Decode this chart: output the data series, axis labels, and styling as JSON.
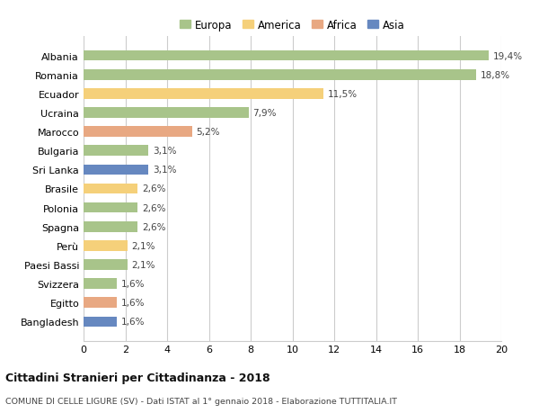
{
  "countries": [
    "Albania",
    "Romania",
    "Ecuador",
    "Ucraina",
    "Marocco",
    "Bulgaria",
    "Sri Lanka",
    "Brasile",
    "Polonia",
    "Spagna",
    "Perù",
    "Paesi Bassi",
    "Svizzera",
    "Egitto",
    "Bangladesh"
  ],
  "values": [
    19.4,
    18.8,
    11.5,
    7.9,
    5.2,
    3.1,
    3.1,
    2.6,
    2.6,
    2.6,
    2.1,
    2.1,
    1.6,
    1.6,
    1.6
  ],
  "labels": [
    "19,4%",
    "18,8%",
    "11,5%",
    "7,9%",
    "5,2%",
    "3,1%",
    "3,1%",
    "2,6%",
    "2,6%",
    "2,6%",
    "2,1%",
    "2,1%",
    "1,6%",
    "1,6%",
    "1,6%"
  ],
  "continents": [
    "Europa",
    "Europa",
    "America",
    "Europa",
    "Africa",
    "Europa",
    "Asia",
    "America",
    "Europa",
    "Europa",
    "America",
    "Europa",
    "Europa",
    "Africa",
    "Asia"
  ],
  "colors": {
    "Europa": "#a8c48a",
    "America": "#f5d07a",
    "Africa": "#e8a882",
    "Asia": "#6688c0"
  },
  "legend_order": [
    "Europa",
    "America",
    "Africa",
    "Asia"
  ],
  "xlim": [
    0,
    20
  ],
  "xticks": [
    0,
    2,
    4,
    6,
    8,
    10,
    12,
    14,
    16,
    18,
    20
  ],
  "title": "Cittadini Stranieri per Cittadinanza - 2018",
  "subtitle": "COMUNE DI CELLE LIGURE (SV) - Dati ISTAT al 1° gennaio 2018 - Elaborazione TUTTITALIA.IT",
  "background_color": "#ffffff",
  "grid_color": "#cccccc"
}
